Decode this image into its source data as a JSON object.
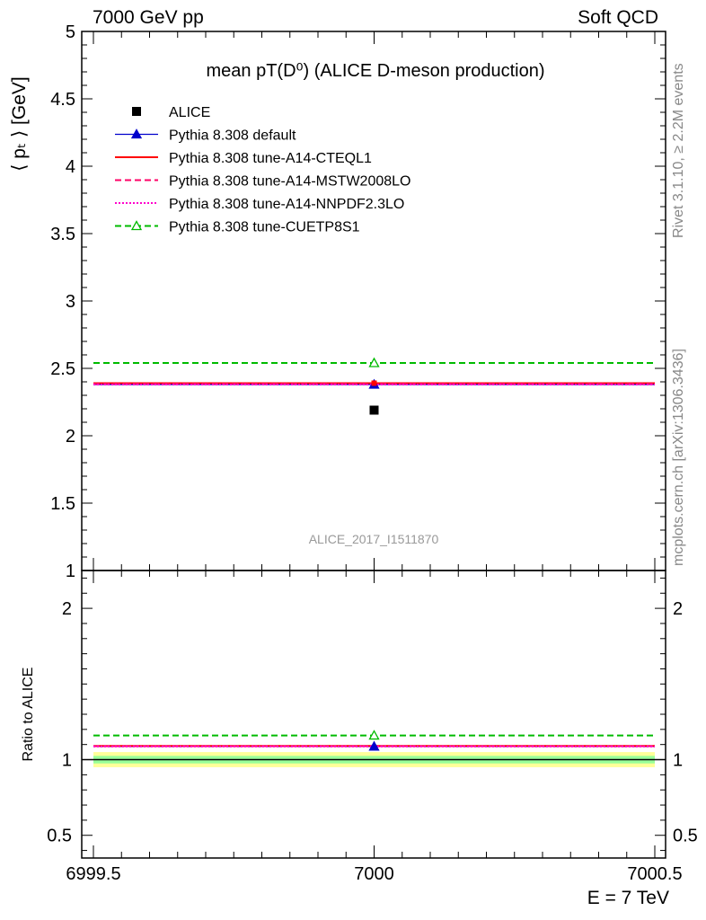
{
  "header": {
    "left_label": "7000 GeV pp",
    "right_label": "Soft QCD"
  },
  "side_labels": {
    "rivet": "Rivet 3.1.10, ≥ 2.2M events",
    "mcplots": "mcplots.cern.ch [arXiv:1306.3436]"
  },
  "chart_data": {
    "type": "scatter",
    "title": "mean pT(D⁰) (ALICE D-meson production)",
    "analysis_tag": "ALICE_2017_I1511870",
    "xlabel": "E = 7 TeV",
    "ylabel": "⟨ pₜ ⟩ [GeV]",
    "ratio_ylabel": "Ratio to ALICE",
    "xlim": [
      6999.5,
      7000.5
    ],
    "ylim": [
      1,
      5
    ],
    "ratio_ylim": [
      0.35,
      2.25
    ],
    "x_ticks": [
      "6999.5",
      "7000",
      "7000.5"
    ],
    "y_ticks": [
      "1",
      "1.5",
      "2",
      "2.5",
      "3",
      "3.5",
      "4",
      "4.5",
      "5"
    ],
    "ratio_ticks": [
      "0.5",
      "1",
      "2"
    ],
    "grid": false,
    "legend_position": "top-left",
    "data": {
      "name": "ALICE",
      "x": 7000,
      "y": 2.19,
      "color": "#000000"
    },
    "series": [
      {
        "name": "Pythia 8.308 default",
        "y": 2.38,
        "ratio": 1.087,
        "color": "#0000cc",
        "style": "solid-triangle"
      },
      {
        "name": "Pythia 8.308 tune-A14-CTEQL1",
        "y": 2.39,
        "ratio": 1.091,
        "color": "#ff0000",
        "style": "solid"
      },
      {
        "name": "Pythia 8.308 tune-A14-MSTW2008LO",
        "y": 2.385,
        "ratio": 1.089,
        "color": "#ff0066",
        "style": "dashed"
      },
      {
        "name": "Pythia 8.308 tune-A14-NNPDF2.3LO",
        "y": 2.38,
        "ratio": 1.087,
        "color": "#ff00cc",
        "style": "dotted"
      },
      {
        "name": "Pythia 8.308 tune-CUETP8S1",
        "y": 2.54,
        "ratio": 1.16,
        "color": "#00bb00",
        "style": "dashed-open-triangle"
      }
    ],
    "ratio_band": {
      "inner": [
        0.975,
        1.025
      ],
      "outer": [
        0.95,
        1.05
      ]
    }
  }
}
